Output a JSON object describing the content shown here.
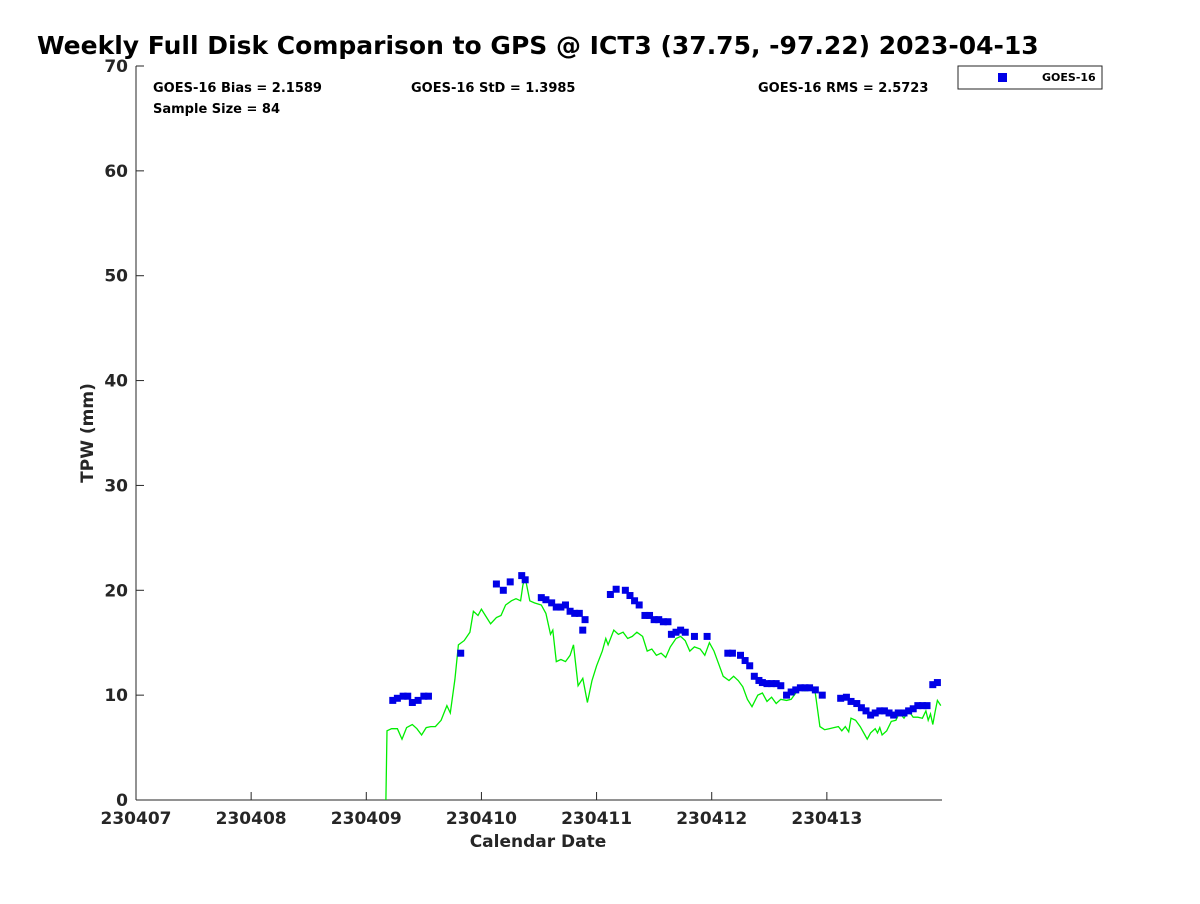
{
  "chart_data": {
    "type": "scatter",
    "title": "Weekly Full Disk Comparison to GPS @ ICT3 (37.75, -97.22) 2023-04-13",
    "xlabel": "Calendar Date",
    "ylabel": "TPW (mm)",
    "xlim": [
      0,
      7
    ],
    "ylim": [
      0,
      70
    ],
    "x_ticks": [
      0,
      1,
      2,
      3,
      4,
      5,
      6
    ],
    "x_tick_labels": [
      "230407",
      "230408",
      "230409",
      "230410",
      "230411",
      "230412",
      "230413"
    ],
    "y_ticks": [
      0,
      10,
      20,
      30,
      40,
      50,
      60,
      70
    ],
    "y_tick_labels": [
      "0",
      "10",
      "20",
      "30",
      "40",
      "50",
      "60",
      "70"
    ],
    "grid": false,
    "legend_position": "top-right",
    "stats": {
      "bias": "GOES-16 Bias = 2.1589",
      "std": "GOES-16 StD = 1.3985",
      "rms": "GOES-16 RMS = 2.5723",
      "sample": "Sample Size = 84"
    },
    "series": [
      {
        "name": "GOES-16",
        "kind": "scatter",
        "color": "#0000e6",
        "points": [
          [
            2.23,
            9.5
          ],
          [
            2.27,
            9.7
          ],
          [
            2.32,
            9.9
          ],
          [
            2.36,
            9.9
          ],
          [
            2.4,
            9.3
          ],
          [
            2.45,
            9.5
          ],
          [
            2.5,
            9.9
          ],
          [
            2.54,
            9.9
          ],
          [
            2.82,
            14.0
          ],
          [
            3.13,
            20.6
          ],
          [
            3.19,
            20.0
          ],
          [
            3.25,
            20.8
          ],
          [
            3.35,
            21.4
          ],
          [
            3.38,
            21.0
          ],
          [
            3.52,
            19.3
          ],
          [
            3.56,
            19.1
          ],
          [
            3.61,
            18.8
          ],
          [
            3.65,
            18.4
          ],
          [
            3.69,
            18.4
          ],
          [
            3.73,
            18.6
          ],
          [
            3.77,
            18.0
          ],
          [
            3.81,
            17.8
          ],
          [
            3.85,
            17.8
          ],
          [
            3.88,
            16.2
          ],
          [
            3.9,
            17.2
          ],
          [
            4.12,
            19.6
          ],
          [
            4.17,
            20.1
          ],
          [
            4.25,
            20.0
          ],
          [
            4.29,
            19.5
          ],
          [
            4.33,
            19.0
          ],
          [
            4.37,
            18.6
          ],
          [
            4.42,
            17.6
          ],
          [
            4.46,
            17.6
          ],
          [
            4.5,
            17.2
          ],
          [
            4.54,
            17.2
          ],
          [
            4.58,
            17.0
          ],
          [
            4.62,
            17.0
          ],
          [
            4.65,
            15.8
          ],
          [
            4.69,
            16.0
          ],
          [
            4.73,
            16.2
          ],
          [
            4.77,
            16.0
          ],
          [
            4.85,
            15.6
          ],
          [
            4.96,
            15.6
          ],
          [
            5.14,
            14.0
          ],
          [
            5.18,
            14.0
          ],
          [
            5.25,
            13.8
          ],
          [
            5.29,
            13.3
          ],
          [
            5.33,
            12.8
          ],
          [
            5.37,
            11.8
          ],
          [
            5.41,
            11.4
          ],
          [
            5.44,
            11.2
          ],
          [
            5.48,
            11.1
          ],
          [
            5.52,
            11.1
          ],
          [
            5.56,
            11.1
          ],
          [
            5.6,
            10.9
          ],
          [
            5.65,
            10.0
          ],
          [
            5.69,
            10.3
          ],
          [
            5.73,
            10.5
          ],
          [
            5.77,
            10.7
          ],
          [
            5.81,
            10.7
          ],
          [
            5.85,
            10.7
          ],
          [
            5.9,
            10.5
          ],
          [
            5.96,
            10.0
          ],
          [
            6.12,
            9.7
          ],
          [
            6.17,
            9.8
          ],
          [
            6.21,
            9.4
          ],
          [
            6.26,
            9.2
          ],
          [
            6.3,
            8.8
          ],
          [
            6.34,
            8.5
          ],
          [
            6.38,
            8.1
          ],
          [
            6.42,
            8.3
          ],
          [
            6.46,
            8.5
          ],
          [
            6.5,
            8.5
          ],
          [
            6.54,
            8.3
          ],
          [
            6.58,
            8.1
          ],
          [
            6.62,
            8.3
          ],
          [
            6.67,
            8.3
          ],
          [
            6.71,
            8.5
          ],
          [
            6.75,
            8.7
          ],
          [
            6.79,
            9.0
          ],
          [
            6.83,
            9.0
          ],
          [
            6.87,
            9.0
          ],
          [
            6.92,
            11.0
          ],
          [
            6.96,
            11.2
          ]
        ]
      },
      {
        "name": "",
        "kind": "line",
        "color": "#00ee00",
        "points": [
          [
            2.17,
            0.0
          ],
          [
            2.18,
            6.6
          ],
          [
            2.22,
            6.8
          ],
          [
            2.27,
            6.8
          ],
          [
            2.31,
            5.8
          ],
          [
            2.35,
            6.9
          ],
          [
            2.4,
            7.2
          ],
          [
            2.44,
            6.8
          ],
          [
            2.48,
            6.2
          ],
          [
            2.52,
            6.9
          ],
          [
            2.56,
            7.0
          ],
          [
            2.6,
            7.0
          ],
          [
            2.65,
            7.6
          ],
          [
            2.7,
            9.0
          ],
          [
            2.73,
            8.3
          ],
          [
            2.77,
            11.5
          ],
          [
            2.8,
            14.8
          ],
          [
            2.85,
            15.2
          ],
          [
            2.9,
            16.0
          ],
          [
            2.93,
            18.0
          ],
          [
            2.97,
            17.6
          ],
          [
            3.0,
            18.2
          ],
          [
            3.04,
            17.5
          ],
          [
            3.08,
            16.8
          ],
          [
            3.13,
            17.4
          ],
          [
            3.17,
            17.6
          ],
          [
            3.21,
            18.6
          ],
          [
            3.26,
            19.0
          ],
          [
            3.3,
            19.2
          ],
          [
            3.34,
            19.0
          ],
          [
            3.36,
            20.5
          ],
          [
            3.38,
            21.2
          ],
          [
            3.42,
            19.0
          ],
          [
            3.46,
            18.8
          ],
          [
            3.52,
            18.6
          ],
          [
            3.56,
            17.8
          ],
          [
            3.6,
            15.8
          ],
          [
            3.62,
            16.2
          ],
          [
            3.65,
            13.2
          ],
          [
            3.69,
            13.4
          ],
          [
            3.73,
            13.2
          ],
          [
            3.77,
            13.8
          ],
          [
            3.8,
            14.8
          ],
          [
            3.84,
            10.9
          ],
          [
            3.88,
            11.6
          ],
          [
            3.92,
            9.3
          ],
          [
            3.96,
            11.4
          ],
          [
            4.0,
            12.8
          ],
          [
            4.05,
            14.2
          ],
          [
            4.08,
            15.4
          ],
          [
            4.1,
            14.8
          ],
          [
            4.15,
            16.2
          ],
          [
            4.19,
            15.8
          ],
          [
            4.23,
            16.0
          ],
          [
            4.27,
            15.4
          ],
          [
            4.31,
            15.6
          ],
          [
            4.35,
            16.0
          ],
          [
            4.4,
            15.6
          ],
          [
            4.44,
            14.2
          ],
          [
            4.48,
            14.4
          ],
          [
            4.52,
            13.8
          ],
          [
            4.56,
            14.0
          ],
          [
            4.6,
            13.6
          ],
          [
            4.64,
            14.6
          ],
          [
            4.69,
            15.4
          ],
          [
            4.73,
            15.6
          ],
          [
            4.77,
            15.2
          ],
          [
            4.81,
            14.2
          ],
          [
            4.85,
            14.6
          ],
          [
            4.9,
            14.4
          ],
          [
            4.94,
            13.8
          ],
          [
            4.98,
            15.0
          ],
          [
            5.02,
            14.2
          ],
          [
            5.06,
            13.0
          ],
          [
            5.1,
            11.8
          ],
          [
            5.15,
            11.4
          ],
          [
            5.19,
            11.8
          ],
          [
            5.23,
            11.4
          ],
          [
            5.27,
            10.8
          ],
          [
            5.31,
            9.6
          ],
          [
            5.35,
            8.9
          ],
          [
            5.4,
            10.0
          ],
          [
            5.44,
            10.2
          ],
          [
            5.48,
            9.4
          ],
          [
            5.52,
            9.8
          ],
          [
            5.56,
            9.2
          ],
          [
            5.6,
            9.6
          ],
          [
            5.65,
            9.5
          ],
          [
            5.69,
            9.6
          ],
          [
            5.73,
            10.2
          ],
          [
            5.77,
            10.6
          ],
          [
            5.81,
            10.4
          ],
          [
            5.85,
            10.6
          ],
          [
            5.9,
            10.2
          ],
          [
            5.94,
            7.0
          ],
          [
            5.98,
            6.7
          ],
          [
            6.02,
            6.8
          ],
          [
            6.06,
            6.9
          ],
          [
            6.1,
            7.0
          ],
          [
            6.13,
            6.6
          ],
          [
            6.16,
            7.0
          ],
          [
            6.19,
            6.5
          ],
          [
            6.21,
            7.8
          ],
          [
            6.25,
            7.6
          ],
          [
            6.29,
            7.0
          ],
          [
            6.33,
            6.2
          ],
          [
            6.35,
            5.8
          ],
          [
            6.38,
            6.4
          ],
          [
            6.42,
            6.8
          ],
          [
            6.44,
            6.4
          ],
          [
            6.46,
            6.9
          ],
          [
            6.48,
            6.2
          ],
          [
            6.52,
            6.6
          ],
          [
            6.56,
            7.5
          ],
          [
            6.6,
            7.6
          ],
          [
            6.63,
            8.3
          ],
          [
            6.67,
            7.8
          ],
          [
            6.71,
            8.5
          ],
          [
            6.75,
            7.9
          ],
          [
            6.79,
            7.9
          ],
          [
            6.83,
            7.8
          ],
          [
            6.86,
            8.5
          ],
          [
            6.88,
            7.6
          ],
          [
            6.9,
            8.2
          ],
          [
            6.92,
            7.2
          ],
          [
            6.94,
            8.4
          ],
          [
            6.96,
            9.5
          ],
          [
            6.99,
            9.0
          ]
        ]
      }
    ]
  }
}
